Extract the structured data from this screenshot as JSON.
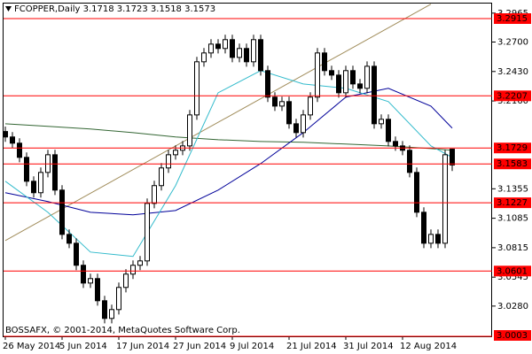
{
  "chart_data": {
    "type": "candlestick",
    "title": "FCOPPER,Daily  3.1718 3.1723 3.1518 3.1573",
    "footer": "BOSSAFX, © 2001-2014, MetaQuotes Software Corp.",
    "categories": [
      "26 May 2014",
      null,
      null,
      null,
      null,
      null,
      null,
      null,
      "5 Jun 2014",
      null,
      null,
      null,
      null,
      null,
      null,
      null,
      "17 Jun 2014",
      null,
      null,
      null,
      null,
      null,
      null,
      null,
      "27 Jun 2014",
      null,
      null,
      null,
      null,
      null,
      null,
      null,
      "9 Jul 2014",
      null,
      null,
      null,
      null,
      null,
      null,
      null,
      "21 Jul 2014",
      null,
      null,
      null,
      null,
      null,
      null,
      null,
      "31 Jul 2014",
      null,
      null,
      null,
      null,
      null,
      null,
      null,
      "12 Aug 2014",
      null,
      null,
      null,
      null,
      null,
      null,
      null
    ],
    "open": [
      3.188,
      3.183,
      3.1773,
      3.1643,
      3.1424,
      3.1319,
      3.1505,
      3.1667,
      3.1343,
      3.0937,
      3.0856,
      3.0654,
      3.0491,
      3.0532,
      3.0329,
      3.0167,
      3.0248,
      3.0451,
      3.0573,
      3.0654,
      3.0694,
      3.1221,
      3.1384,
      3.1546,
      3.1667,
      3.1708,
      3.1748,
      3.2032,
      3.2519,
      3.26,
      3.2681,
      3.2641,
      3.2722,
      3.2559,
      3.2641,
      3.2519,
      3.2722,
      3.2438,
      3.2195,
      3.2113,
      3.2154,
      3.1951,
      3.187,
      3.2032,
      3.2195,
      3.26,
      3.2438,
      3.2397,
      3.2235,
      3.2438,
      3.2316,
      3.2276,
      3.2478,
      3.1951,
      3.1992,
      3.1789,
      3.1748,
      3.1708,
      3.1505,
      3.114,
      3.0856,
      3.0937,
      3.0856,
      3.1718
    ],
    "high": [
      3.1925,
      3.1875,
      3.1818,
      3.1688,
      3.1469,
      3.155,
      3.1712,
      3.1712,
      3.1388,
      3.0982,
      3.0901,
      3.0699,
      3.0577,
      3.0577,
      3.0374,
      3.0293,
      3.0496,
      3.0618,
      3.0699,
      3.0739,
      3.1266,
      3.1429,
      3.1591,
      3.1712,
      3.1753,
      3.1793,
      3.2077,
      3.2564,
      3.2645,
      3.2726,
      3.2726,
      3.2767,
      3.2767,
      3.2686,
      3.2686,
      3.2767,
      3.2767,
      3.2483,
      3.224,
      3.2199,
      3.2199,
      3.1996,
      3.2077,
      3.224,
      3.2645,
      3.2645,
      3.2483,
      3.2442,
      3.2483,
      3.2483,
      3.2361,
      3.2523,
      3.2523,
      3.2037,
      3.2037,
      3.1834,
      3.1793,
      3.1753,
      3.155,
      3.1185,
      3.0982,
      3.0982,
      3.1712,
      3.1723
    ],
    "low": [
      3.1785,
      3.1728,
      3.1598,
      3.1379,
      3.1274,
      3.1274,
      3.146,
      3.1298,
      3.0892,
      3.0811,
      3.0609,
      3.0446,
      3.0446,
      3.0284,
      3.0122,
      3.0122,
      3.0203,
      3.0406,
      3.0528,
      3.0609,
      3.0649,
      3.1176,
      3.1339,
      3.1501,
      3.1622,
      3.1663,
      3.1703,
      3.1987,
      3.2474,
      3.2555,
      3.2596,
      3.2596,
      3.2514,
      3.2514,
      3.2474,
      3.2474,
      3.2393,
      3.215,
      3.2068,
      3.2068,
      3.1906,
      3.1825,
      3.1825,
      3.1987,
      3.215,
      3.2393,
      3.2352,
      3.219,
      3.219,
      3.2271,
      3.2231,
      3.2231,
      3.1906,
      3.1906,
      3.1744,
      3.1703,
      3.1663,
      3.146,
      3.1095,
      3.0811,
      3.0811,
      3.0811,
      3.0811,
      3.1518
    ],
    "close": [
      3.183,
      3.1773,
      3.1643,
      3.1424,
      3.1319,
      3.1505,
      3.1667,
      3.1343,
      3.0937,
      3.0856,
      3.0654,
      3.0491,
      3.0532,
      3.0329,
      3.0167,
      3.0248,
      3.0451,
      3.0573,
      3.0654,
      3.0694,
      3.1221,
      3.1384,
      3.1546,
      3.1667,
      3.1708,
      3.1748,
      3.2032,
      3.2519,
      3.26,
      3.2681,
      3.2641,
      3.2722,
      3.2559,
      3.2641,
      3.2519,
      3.2722,
      3.2438,
      3.2195,
      3.2113,
      3.2154,
      3.1951,
      3.187,
      3.2032,
      3.2195,
      3.26,
      3.2438,
      3.2397,
      3.2235,
      3.2438,
      3.2316,
      3.2276,
      3.2478,
      3.1951,
      3.1992,
      3.1789,
      3.1748,
      3.1708,
      3.1505,
      3.114,
      3.0856,
      3.0937,
      3.0856,
      3.1667,
      3.1573
    ],
    "up_color": "#ffffff",
    "down_color": "#000000",
    "wick_color": "#000000",
    "ylim": [
      3.0003,
      3.3061
    ],
    "yticks": [
      3.2965,
      {
        "value": 3.27,
        "label": "3.2700"
      },
      {
        "value": 3.243,
        "label": "3.2430"
      },
      {
        "value": 3.216,
        "label": "3.2160"
      },
      3.1355,
      3.1085,
      3.0815,
      3.0545,
      {
        "value": 3.028,
        "label": "3.0280"
      }
    ],
    "levels": [
      3.2915,
      3.2207,
      3.1729,
      3.1583,
      3.1227,
      3.0601,
      3.0003
    ],
    "level_color": "#ff0000",
    "overlays": [
      {
        "color": "#a08c5a",
        "x": [
          0,
          60
        ],
        "values": [
          3.0881,
          3.3047
        ]
      },
      {
        "color": "#336633",
        "x": [
          0,
          6,
          12,
          18,
          24,
          30,
          36,
          42,
          48,
          54,
          60,
          63
        ],
        "values": [
          3.1951,
          3.1927,
          3.1903,
          3.187,
          3.183,
          3.1805,
          3.1789,
          3.1781,
          3.1765,
          3.1748,
          3.1724,
          3.1708
        ]
      },
      {
        "color": "#000099",
        "x": [
          0,
          6,
          12,
          18,
          24,
          30,
          36,
          42,
          48,
          54,
          60,
          63
        ],
        "values": [
          3.1319,
          3.1238,
          3.114,
          3.1116,
          3.1156,
          3.1343,
          3.1586,
          3.187,
          3.2195,
          3.2276,
          3.2113,
          3.1911
        ]
      },
      {
        "color": "#33bbcc",
        "x": [
          0,
          6,
          12,
          18,
          24,
          30,
          36,
          42,
          48,
          54,
          60,
          63
        ],
        "values": [
          3.1424,
          3.114,
          3.0775,
          3.0735,
          3.1384,
          3.2235,
          3.2438,
          3.2316,
          3.2276,
          3.2154,
          3.1748,
          3.1643
        ]
      }
    ]
  }
}
